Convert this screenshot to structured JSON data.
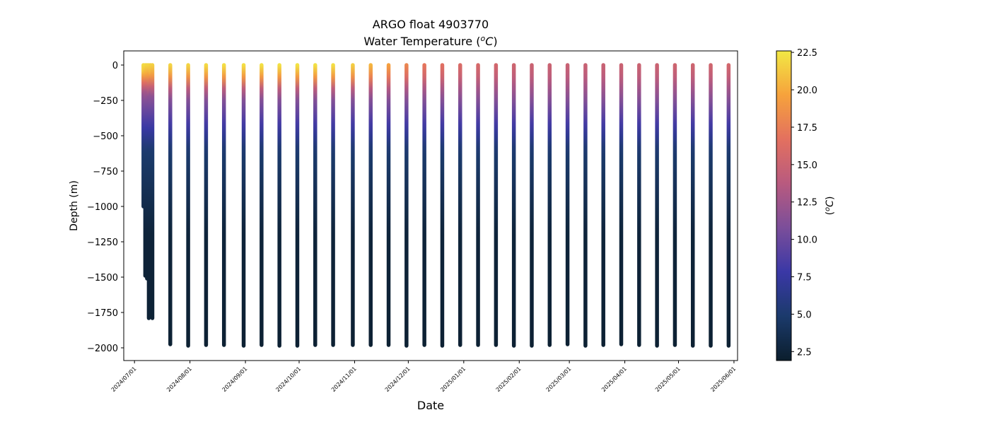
{
  "chart_data": {
    "type": "scatter",
    "title_line1": "ARGO float 4903770",
    "title_line2": "Water Temperature (",
    "title_unit_sup": "o",
    "title_unit_c": "C",
    "title_close": ")",
    "xlabel": "Date",
    "ylabel": "Depth (m)",
    "colorbar_label_open": "(",
    "colorbar_label_sup": "o",
    "colorbar_label_c": "C",
    "colorbar_label_close": ")",
    "xlim": [
      "2024-06-25",
      "2025-06-03"
    ],
    "ylim": [
      -2090,
      100
    ],
    "clim": [
      1.9,
      22.6
    ],
    "colormap": [
      "#0b1e2d",
      "#1b3a6b",
      "#3a38a6",
      "#7b4e9a",
      "#b85a7f",
      "#e3705f",
      "#f6a23c",
      "#f2e844"
    ],
    "x_ticks": [
      "2024/07/01",
      "2024/08/01",
      "2024/09/01",
      "2024/10/01",
      "2024/11/01",
      "2024/12/01",
      "2025/01/01",
      "2025/02/01",
      "2025/03/01",
      "2025/04/01",
      "2025/05/01",
      "2025/06/01"
    ],
    "y_ticks": [
      "0",
      "−250",
      "−500",
      "−750",
      "−1000",
      "−1250",
      "−1500",
      "−1750",
      "−2000"
    ],
    "y_tick_values": [
      0,
      -250,
      -500,
      -750,
      -1000,
      -1250,
      -1500,
      -1750,
      -2000
    ],
    "colorbar_ticks": [
      "2.5",
      "5.0",
      "7.5",
      "10.0",
      "12.5",
      "15.0",
      "17.5",
      "20.0",
      "22.5"
    ],
    "colorbar_tick_values": [
      2.5,
      5.0,
      7.5,
      10.0,
      12.5,
      15.0,
      17.5,
      20.0,
      22.5
    ],
    "profiles": [
      {
        "date": "2024-07-06",
        "max_depth": 1000,
        "surface_temp": 22.0
      },
      {
        "date": "2024-07-07",
        "max_depth": 1490,
        "surface_temp": 22.0
      },
      {
        "date": "2024-07-08",
        "max_depth": 1510,
        "surface_temp": 21.8
      },
      {
        "date": "2024-07-09",
        "max_depth": 1790,
        "surface_temp": 21.8
      },
      {
        "date": "2024-07-10",
        "max_depth": 1230,
        "surface_temp": 21.6
      },
      {
        "date": "2024-07-11",
        "max_depth": 1790,
        "surface_temp": 21.6
      },
      {
        "date": "2024-07-21",
        "max_depth": 1975,
        "surface_temp": 21.8
      },
      {
        "date": "2024-07-31",
        "max_depth": 1985,
        "surface_temp": 21.8
      },
      {
        "date": "2024-08-10",
        "max_depth": 1980,
        "surface_temp": 22.0
      },
      {
        "date": "2024-08-20",
        "max_depth": 1980,
        "surface_temp": 22.2
      },
      {
        "date": "2024-08-31",
        "max_depth": 1985,
        "surface_temp": 22.2
      },
      {
        "date": "2024-09-10",
        "max_depth": 1980,
        "surface_temp": 22.3
      },
      {
        "date": "2024-09-20",
        "max_depth": 1985,
        "surface_temp": 22.3
      },
      {
        "date": "2024-09-30",
        "max_depth": 1985,
        "surface_temp": 22.4
      },
      {
        "date": "2024-10-10",
        "max_depth": 1980,
        "surface_temp": 22.3
      },
      {
        "date": "2024-10-20",
        "max_depth": 1980,
        "surface_temp": 22.2
      },
      {
        "date": "2024-10-31",
        "max_depth": 1980,
        "surface_temp": 21.5
      },
      {
        "date": "2024-11-10",
        "max_depth": 1980,
        "surface_temp": 20.5
      },
      {
        "date": "2024-11-20",
        "max_depth": 1980,
        "surface_temp": 19.5
      },
      {
        "date": "2024-11-30",
        "max_depth": 1985,
        "surface_temp": 18.0
      },
      {
        "date": "2024-12-10",
        "max_depth": 1980,
        "surface_temp": 17.0
      },
      {
        "date": "2024-12-20",
        "max_depth": 1985,
        "surface_temp": 16.5
      },
      {
        "date": "2024-12-30",
        "max_depth": 1980,
        "surface_temp": 16.0
      },
      {
        "date": "2025-01-09",
        "max_depth": 1980,
        "surface_temp": 15.8
      },
      {
        "date": "2025-01-19",
        "max_depth": 1980,
        "surface_temp": 15.5
      },
      {
        "date": "2025-01-29",
        "max_depth": 1985,
        "surface_temp": 15.2
      },
      {
        "date": "2025-02-08",
        "max_depth": 1985,
        "surface_temp": 15.0
      },
      {
        "date": "2025-02-18",
        "max_depth": 1980,
        "surface_temp": 15.0
      },
      {
        "date": "2025-02-28",
        "max_depth": 1975,
        "surface_temp": 14.8
      },
      {
        "date": "2025-03-10",
        "max_depth": 1985,
        "surface_temp": 14.8
      },
      {
        "date": "2025-03-20",
        "max_depth": 1980,
        "surface_temp": 14.8
      },
      {
        "date": "2025-03-30",
        "max_depth": 1975,
        "surface_temp": 15.0
      },
      {
        "date": "2025-04-09",
        "max_depth": 1980,
        "surface_temp": 15.0
      },
      {
        "date": "2025-04-19",
        "max_depth": 1985,
        "surface_temp": 15.0
      },
      {
        "date": "2025-04-29",
        "max_depth": 1980,
        "surface_temp": 15.2
      },
      {
        "date": "2025-05-09",
        "max_depth": 1985,
        "surface_temp": 15.2
      },
      {
        "date": "2025-05-19",
        "max_depth": 1985,
        "surface_temp": 15.3
      },
      {
        "date": "2025-05-29",
        "max_depth": 1985,
        "surface_temp": 15.5
      }
    ]
  }
}
